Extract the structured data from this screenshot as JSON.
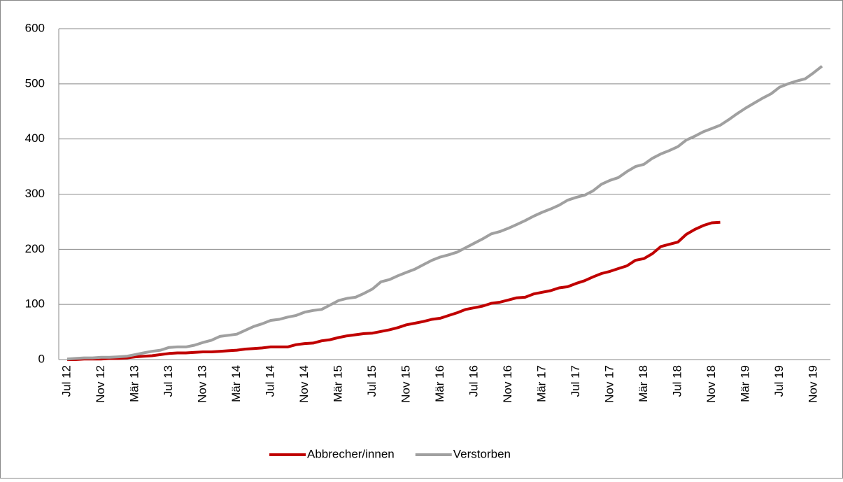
{
  "chart_data": {
    "type": "line",
    "categories": [
      "Jul 12",
      null,
      null,
      null,
      "Nov 12",
      null,
      null,
      null,
      "Mär 13",
      null,
      null,
      null,
      "Jul 13",
      null,
      null,
      null,
      "Nov 13",
      null,
      null,
      null,
      "Mär 14",
      null,
      null,
      null,
      "Jul 14",
      null,
      null,
      null,
      "Nov 14",
      null,
      null,
      null,
      "Mär 15",
      null,
      null,
      null,
      "Jul 15",
      null,
      null,
      null,
      "Nov 15",
      null,
      null,
      null,
      "Mär 16",
      null,
      null,
      null,
      "Jul 16",
      null,
      null,
      null,
      "Nov 16",
      null,
      null,
      null,
      "Mär 17",
      null,
      null,
      null,
      "Jul 17",
      null,
      null,
      null,
      "Nov 17",
      null,
      null,
      null,
      "Mär 18",
      null,
      null,
      null,
      "Jul 18",
      null,
      null,
      null,
      "Nov 18",
      null,
      null,
      null,
      "Mär 19",
      null,
      null,
      null,
      "Jul 19",
      null,
      null,
      null,
      "Nov 19",
      null
    ],
    "series": [
      {
        "name": "Abbrecher/innen",
        "color": "#c00000",
        "values": [
          0,
          0,
          1,
          1,
          1,
          2,
          2,
          3,
          5,
          6,
          7,
          9,
          11,
          12,
          12,
          13,
          14,
          14,
          15,
          16,
          17,
          19,
          20,
          21,
          23,
          23,
          23,
          27,
          29,
          30,
          34,
          36,
          40,
          43,
          45,
          47,
          48,
          51,
          54,
          58,
          63,
          66,
          69,
          73,
          75,
          80,
          85,
          91,
          94,
          97,
          102,
          104,
          108,
          112,
          113,
          119,
          122,
          125,
          130,
          132,
          138,
          143,
          150,
          156,
          160,
          165,
          170,
          180,
          183,
          192,
          205,
          209,
          213,
          227,
          236,
          243,
          248,
          249,
          null,
          null,
          null,
          null,
          null,
          null,
          null,
          null,
          null,
          null,
          null,
          null
        ]
      },
      {
        "name": "Verstorben",
        "color": "#a0a0a0",
        "values": [
          1,
          2,
          3,
          3,
          4,
          4,
          5,
          6,
          9,
          12,
          15,
          17,
          22,
          23,
          23,
          26,
          31,
          35,
          42,
          44,
          46,
          53,
          60,
          65,
          71,
          73,
          77,
          80,
          86,
          89,
          91,
          99,
          107,
          111,
          113,
          120,
          128,
          141,
          145,
          152,
          158,
          164,
          172,
          180,
          186,
          190,
          195,
          203,
          211,
          219,
          228,
          232,
          238,
          245,
          252,
          260,
          267,
          273,
          280,
          289,
          294,
          298,
          306,
          318,
          325,
          330,
          341,
          350,
          354,
          365,
          373,
          379,
          386,
          398,
          405,
          413,
          419,
          425,
          435,
          446,
          456,
          465,
          474,
          482,
          494,
          500,
          505,
          509,
          520,
          532
        ]
      }
    ],
    "ylim": [
      0,
      600
    ],
    "yticks": [
      0,
      100,
      200,
      300,
      400,
      500,
      600
    ],
    "grid": true,
    "legend": "bottom"
  }
}
